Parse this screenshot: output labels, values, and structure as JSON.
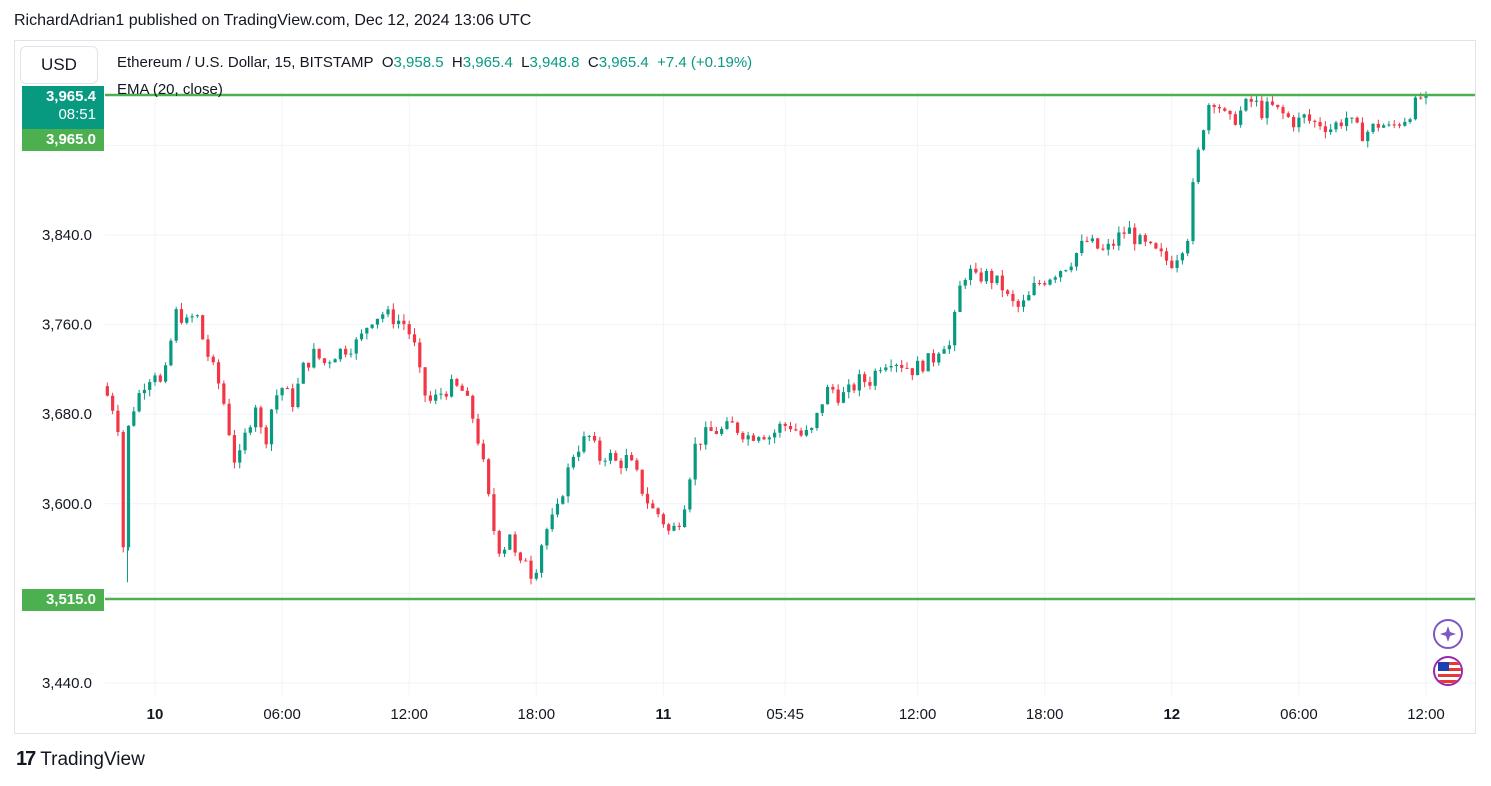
{
  "header": {
    "text": "RichardAdrian1 published on TradingView.com, Dec 12, 2024 13:06 UTC"
  },
  "currency_button": {
    "label": "USD"
  },
  "legend": {
    "symbol": "Ethereum / U.S. Dollar, 15, BITSTAMP",
    "o_label": "O",
    "o_value": "3,958.5",
    "h_label": "H",
    "h_value": "3,965.4",
    "l_label": "L",
    "l_value": "3,948.8",
    "c_label": "C",
    "c_value": "3,965.4",
    "change": "+7.4 (+0.19%)",
    "indicator": "EMA (20, close)"
  },
  "price_tags": {
    "last_price": "3,965.4",
    "countdown": "08:51",
    "upper_level": "3,965.0",
    "lower_level": "3,515.0"
  },
  "footer": {
    "logo_mark": "17",
    "brand": "TradingView"
  },
  "colors": {
    "up": "#089981",
    "down": "#f23645",
    "level_line": "#4caf50",
    "grid": "#f0f3fa"
  },
  "icons": [
    "sparkle-icon",
    "us-flag-icon"
  ],
  "chart_data": {
    "type": "candlestick",
    "title": "Ethereum / U.S. Dollar, 15, BITSTAMP",
    "ylim": [
      3410,
      3985
    ],
    "y_ticks": [
      3440,
      3520,
      3600,
      3680,
      3760,
      3840,
      3920
    ],
    "y_tick_labels": [
      "3,440.0",
      "",
      "3,600.0",
      "3,680.0",
      "3,760.0",
      "3,840.0",
      ""
    ],
    "x_tick_labels": [
      "10",
      "06:00",
      "12:00",
      "18:00",
      "11",
      "05:45",
      "12:00",
      "18:00",
      "12",
      "06:00",
      "12:00"
    ],
    "x_tick_hours": [
      0,
      6,
      12,
      18,
      24,
      29.75,
      36,
      42,
      48,
      54,
      60
    ],
    "x_start_hour": -2.25,
    "x_end_hour": 61.0,
    "horizontal_levels": [
      3965.0,
      3515.0
    ],
    "price_path": [
      [
        -2.25,
        3705
      ],
      [
        -1.8,
        3690
      ],
      [
        -1.5,
        3670
      ],
      [
        -1.3,
        3530
      ],
      [
        -1.1,
        3660
      ],
      [
        -0.7,
        3690
      ],
      [
        -0.2,
        3710
      ],
      [
        0.3,
        3720
      ],
      [
        0.6,
        3700
      ],
      [
        1.0,
        3745
      ],
      [
        1.3,
        3775
      ],
      [
        1.7,
        3760
      ],
      [
        2.2,
        3770
      ],
      [
        2.6,
        3740
      ],
      [
        3.0,
        3720
      ],
      [
        3.4,
        3700
      ],
      [
        3.8,
        3660
      ],
      [
        4.1,
        3630
      ],
      [
        4.5,
        3660
      ],
      [
        5.0,
        3690
      ],
      [
        5.4,
        3650
      ],
      [
        5.8,
        3690
      ],
      [
        6.2,
        3705
      ],
      [
        6.8,
        3690
      ],
      [
        7.2,
        3720
      ],
      [
        7.8,
        3735
      ],
      [
        8.2,
        3725
      ],
      [
        8.8,
        3735
      ],
      [
        9.4,
        3740
      ],
      [
        9.9,
        3745
      ],
      [
        10.4,
        3765
      ],
      [
        11.0,
        3770
      ],
      [
        11.6,
        3765
      ],
      [
        12.1,
        3760
      ],
      [
        12.5,
        3740
      ],
      [
        12.9,
        3700
      ],
      [
        13.3,
        3690
      ],
      [
        13.8,
        3700
      ],
      [
        14.3,
        3705
      ],
      [
        14.8,
        3700
      ],
      [
        15.3,
        3675
      ],
      [
        15.7,
        3640
      ],
      [
        16.2,
        3580
      ],
      [
        16.6,
        3555
      ],
      [
        17.0,
        3575
      ],
      [
        17.4,
        3540
      ],
      [
        17.8,
        3555
      ],
      [
        18.1,
        3530
      ],
      [
        18.4,
        3560
      ],
      [
        18.8,
        3580
      ],
      [
        19.2,
        3590
      ],
      [
        19.6,
        3620
      ],
      [
        20.0,
        3645
      ],
      [
        20.4,
        3655
      ],
      [
        20.8,
        3660
      ],
      [
        21.2,
        3640
      ],
      [
        21.6,
        3645
      ],
      [
        22.1,
        3635
      ],
      [
        22.5,
        3640
      ],
      [
        22.9,
        3630
      ],
      [
        23.3,
        3610
      ],
      [
        23.7,
        3595
      ],
      [
        24.1,
        3590
      ],
      [
        24.5,
        3575
      ],
      [
        24.9,
        3580
      ],
      [
        25.3,
        3605
      ],
      [
        25.7,
        3650
      ],
      [
        26.1,
        3660
      ],
      [
        26.6,
        3665
      ],
      [
        27.0,
        3665
      ],
      [
        27.5,
        3670
      ],
      [
        27.9,
        3665
      ],
      [
        28.3,
        3660
      ],
      [
        28.8,
        3665
      ],
      [
        29.3,
        3660
      ],
      [
        29.8,
        3670
      ],
      [
        30.3,
        3670
      ],
      [
        30.8,
        3660
      ],
      [
        31.3,
        3665
      ],
      [
        31.7,
        3690
      ],
      [
        32.1,
        3705
      ],
      [
        32.6,
        3695
      ],
      [
        33.0,
        3700
      ],
      [
        33.5,
        3710
      ],
      [
        34.0,
        3710
      ],
      [
        34.5,
        3725
      ],
      [
        35.0,
        3730
      ],
      [
        35.5,
        3725
      ],
      [
        36.0,
        3720
      ],
      [
        36.5,
        3725
      ],
      [
        37.0,
        3730
      ],
      [
        37.4,
        3745
      ],
      [
        37.8,
        3740
      ],
      [
        38.2,
        3790
      ],
      [
        38.6,
        3810
      ],
      [
        39.0,
        3800
      ],
      [
        39.4,
        3805
      ],
      [
        39.8,
        3800
      ],
      [
        40.2,
        3795
      ],
      [
        40.6,
        3780
      ],
      [
        41.0,
        3775
      ],
      [
        41.4,
        3780
      ],
      [
        41.8,
        3795
      ],
      [
        42.2,
        3800
      ],
      [
        42.6,
        3805
      ],
      [
        43.0,
        3810
      ],
      [
        43.4,
        3815
      ],
      [
        43.8,
        3825
      ],
      [
        44.2,
        3835
      ],
      [
        44.6,
        3830
      ],
      [
        45.0,
        3825
      ],
      [
        45.4,
        3830
      ],
      [
        45.8,
        3840
      ],
      [
        46.2,
        3845
      ],
      [
        46.6,
        3835
      ],
      [
        47.0,
        3830
      ],
      [
        47.4,
        3825
      ],
      [
        47.8,
        3820
      ],
      [
        48.2,
        3815
      ],
      [
        48.6,
        3825
      ],
      [
        49.0,
        3840
      ],
      [
        49.3,
        3890
      ],
      [
        49.7,
        3935
      ],
      [
        50.1,
        3965
      ],
      [
        50.5,
        3955
      ],
      [
        50.9,
        3940
      ],
      [
        51.3,
        3945
      ],
      [
        51.7,
        3955
      ],
      [
        52.1,
        3960
      ],
      [
        52.5,
        3950
      ],
      [
        52.9,
        3955
      ],
      [
        53.3,
        3950
      ],
      [
        53.7,
        3945
      ],
      [
        54.1,
        3940
      ],
      [
        54.5,
        3945
      ],
      [
        54.9,
        3940
      ],
      [
        55.3,
        3940
      ],
      [
        55.7,
        3935
      ],
      [
        56.1,
        3940
      ],
      [
        56.5,
        3945
      ],
      [
        56.9,
        3935
      ],
      [
        57.3,
        3930
      ],
      [
        57.7,
        3935
      ],
      [
        58.1,
        3940
      ],
      [
        58.5,
        3935
      ],
      [
        58.9,
        3940
      ],
      [
        59.3,
        3945
      ],
      [
        59.7,
        3955
      ],
      [
        60.1,
        3965.4
      ]
    ]
  }
}
